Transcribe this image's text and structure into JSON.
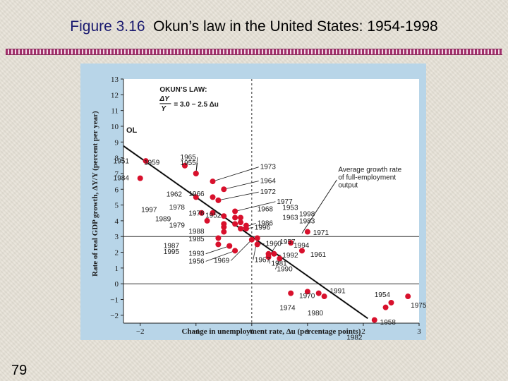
{
  "slide": {
    "figure_label": "Figure 3.16",
    "title": "Okun’s law in the United States: 1954-1998",
    "page_number": "79"
  },
  "colors": {
    "panel": "#b8d5e8",
    "plot": "#ffffff",
    "point": "#d8102c",
    "text": "#1a1a1a"
  },
  "chart_data": {
    "type": "scatter",
    "xlabel": "Change in unemployment rate, Δu (percentage points)",
    "ylabel": "Rate of real GDP growth, ΔY/Y (percent per year)",
    "xlim": [
      -2.3,
      3.0
    ],
    "ylim": [
      -2.5,
      13.0
    ],
    "x_ticks": [
      -2,
      -1,
      0,
      1,
      2,
      3
    ],
    "x_tick_labels": [
      "−2",
      "−1",
      "0",
      "1",
      "2",
      "3"
    ],
    "y_ticks": [
      -2,
      -1,
      0,
      1,
      2,
      3,
      4,
      5,
      6,
      7,
      8,
      9,
      10,
      11,
      12,
      13
    ],
    "y_tick_labels": [
      "−2",
      "−1",
      "0",
      "1",
      "2",
      "3",
      "4",
      "5",
      "6",
      "7",
      "8",
      "9",
      "10",
      "11",
      "12",
      "13"
    ],
    "reference_lines": {
      "horizontal": [
        3,
        0
      ],
      "vertical": [
        0
      ]
    },
    "okun_line": {
      "intercept": 3.0,
      "slope": -2.5,
      "label": "OL"
    },
    "legend_box": {
      "title": "OKUN’S LAW:",
      "equation_lhs_top": "ΔY",
      "equation_lhs_bottom": "Y",
      "equation_rhs": "= 3.0 − 2.5 Δu"
    },
    "annotation": {
      "lines": [
        "Average growth rate",
        "of full-employment",
        "output"
      ]
    },
    "points": [
      {
        "year": "1951",
        "x": -1.9,
        "y": 7.8
      },
      {
        "year": "1984",
        "x": -2.0,
        "y": 6.7
      },
      {
        "year": "1959",
        "x": -1.2,
        "y": 7.5
      },
      {
        "year": "1965",
        "x": -1.0,
        "y": 7.0
      },
      {
        "year": "1955",
        "x": -1.0,
        "y": 7.0
      },
      {
        "year": "1962",
        "x": -1.0,
        "y": 5.5
      },
      {
        "year": "1966",
        "x": -0.7,
        "y": 5.5
      },
      {
        "year": "1997",
        "x": -0.9,
        "y": 4.5
      },
      {
        "year": "1978",
        "x": -0.7,
        "y": 4.5
      },
      {
        "year": "1976",
        "x": -0.5,
        "y": 4.3
      },
      {
        "year": "1989",
        "x": -0.8,
        "y": 4.0
      },
      {
        "year": "1979",
        "x": -0.5,
        "y": 3.6
      },
      {
        "year": "1988",
        "x": -0.5,
        "y": 3.3
      },
      {
        "year": "1985",
        "x": -0.6,
        "y": 2.9
      },
      {
        "year": "1987",
        "x": -0.6,
        "y": 2.5
      },
      {
        "year": "1995",
        "x": -0.4,
        "y": 2.4
      },
      {
        "year": "1993",
        "x": -0.4,
        "y": 2.4
      },
      {
        "year": "1956",
        "x": -0.3,
        "y": 2.1
      },
      {
        "year": "1952",
        "x": -0.3,
        "y": 3.8
      },
      {
        "year": "1973",
        "x": -0.7,
        "y": 6.5
      },
      {
        "year": "1964",
        "x": -0.5,
        "y": 6.0
      },
      {
        "year": "1972",
        "x": -0.6,
        "y": 5.3
      },
      {
        "year": "1977",
        "x": -0.3,
        "y": 4.6
      },
      {
        "year": "1968",
        "x": -0.3,
        "y": 4.2
      },
      {
        "year": "1953",
        "x": -0.2,
        "y": 4.2
      },
      {
        "year": "1998",
        "x": -0.2,
        "y": 3.9
      },
      {
        "year": "1963",
        "x": -0.1,
        "y": 3.7
      },
      {
        "year": "1983",
        "x": -0.5,
        "y": 3.8
      },
      {
        "year": "1986",
        "x": -0.2,
        "y": 3.5
      },
      {
        "year": "1996",
        "x": -0.1,
        "y": 3.5
      },
      {
        "year": "1957",
        "x": 0.3,
        "y": 1.7
      },
      {
        "year": "1960",
        "x": 0.1,
        "y": 2.5
      },
      {
        "year": "1971",
        "x": 1.0,
        "y": 3.3
      },
      {
        "year": "1994",
        "x": 0.7,
        "y": 2.6
      },
      {
        "year": "1992",
        "x": 0.4,
        "y": 1.9
      },
      {
        "year": "1961",
        "x": 0.9,
        "y": 2.1
      },
      {
        "year": "1981",
        "x": 0.3,
        "y": 1.9
      },
      {
        "year": "1969",
        "x": 0.0,
        "y": 2.8
      },
      {
        "year": "1967",
        "x": 0.1,
        "y": 2.9
      },
      {
        "year": "1990",
        "x": 0.5,
        "y": 1.6
      },
      {
        "year": "1970",
        "x": 1.3,
        "y": -0.8
      },
      {
        "year": "1991",
        "x": 1.2,
        "y": -0.6
      },
      {
        "year": "1974",
        "x": 0.7,
        "y": -0.6
      },
      {
        "year": "1980",
        "x": 1.0,
        "y": -0.5
      },
      {
        "year": "1954",
        "x": 2.5,
        "y": -1.2
      },
      {
        "year": "1975",
        "x": 2.8,
        "y": -0.8
      },
      {
        "year": "1958",
        "x": 2.4,
        "y": -1.5
      },
      {
        "year": "1982",
        "x": 2.2,
        "y": -2.3
      }
    ]
  }
}
